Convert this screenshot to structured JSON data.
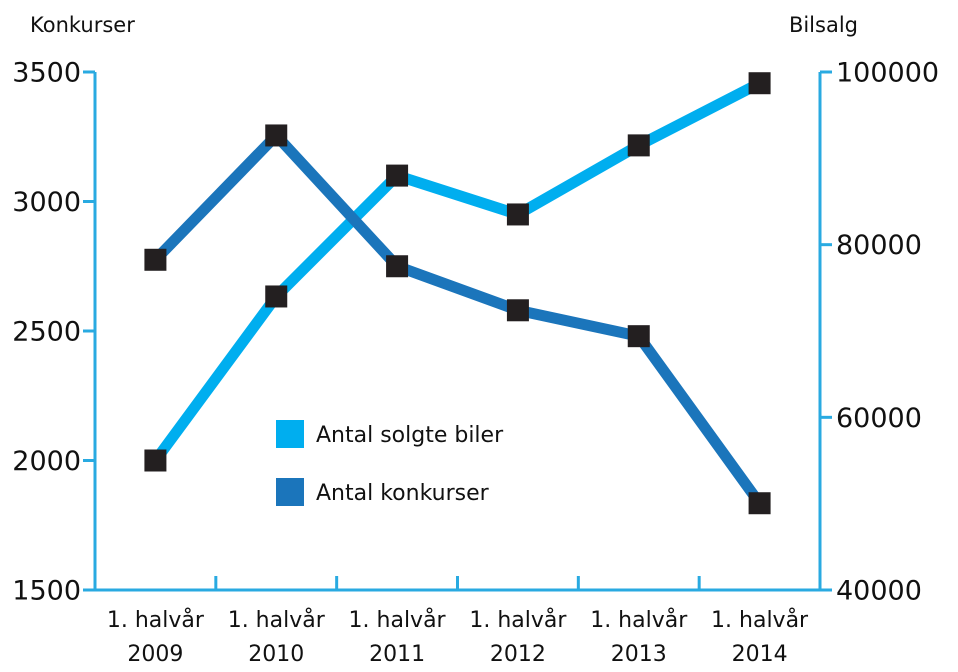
{
  "chart_data": {
    "type": "line",
    "ylabel": "Konkurser",
    "y2label": "Bilsalg",
    "categories": [
      "1. halvår 2009",
      "1. halvår 2010",
      "1. halvår 2011",
      "1. halvår 2012",
      "1. halvår 2013",
      "1. halvår 2014"
    ],
    "series": [
      {
        "name": "Antal solgte biler",
        "color": "#00aeef",
        "axis": "y2",
        "values": [
          55000,
          74000,
          88000,
          83500,
          91500,
          98700
        ]
      },
      {
        "name": "Antal konkurser",
        "color": "#1b75bb",
        "values": [
          2775,
          3255,
          2750,
          2580,
          2480,
          1835
        ]
      }
    ],
    "ylim": [
      1500,
      3500
    ],
    "yticks": [
      1500,
      2000,
      2500,
      3000,
      3500
    ],
    "y2lim": [
      40000,
      100000
    ],
    "y2ticks": [
      40000,
      60000,
      80000,
      100000
    ],
    "axis_color": "#29aae1",
    "marker_color": "#231f20"
  }
}
